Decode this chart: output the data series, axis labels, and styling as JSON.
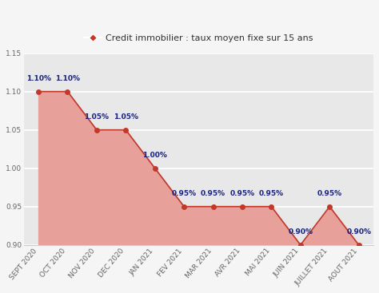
{
  "categories": [
    "SEPT 2020",
    "OCT 2020",
    "NOV 2020",
    "DEC 2020",
    "JAN 2021",
    "FEV 2021",
    "MAR 2021",
    "AVR 2021",
    "MAI 2021",
    "JUIN 2021",
    "JUILLET 2021",
    "AOUT 2021"
  ],
  "values": [
    1.1,
    1.1,
    1.05,
    1.05,
    1.0,
    0.95,
    0.95,
    0.95,
    0.95,
    0.9,
    0.95,
    0.9
  ],
  "labels": [
    "1.10%",
    "1.10%",
    "1.05%",
    "1.05%",
    "1.00%",
    "0.95%",
    "0.95%",
    "0.95%",
    "0.95%",
    "0.90%",
    "0.95%",
    "0.90%"
  ],
  "line_color": "#c0392b",
  "fill_color": "#e8a09a",
  "marker_color": "#c0392b",
  "label_color": "#1a237e",
  "legend_label": "Credit immobilier : taux moyen fixe sur 15 ans",
  "ylim": [
    0.9,
    1.15
  ],
  "yticks": [
    0.9,
    0.95,
    1.0,
    1.05,
    1.1,
    1.15
  ],
  "background_color": "#f5f5f5",
  "plot_bg_color": "#e8e8e8",
  "grid_color": "#ffffff",
  "label_fontsize": 6.5,
  "tick_fontsize": 6.5,
  "legend_fontsize": 8.0,
  "ylabel_label_offset": 0.012
}
